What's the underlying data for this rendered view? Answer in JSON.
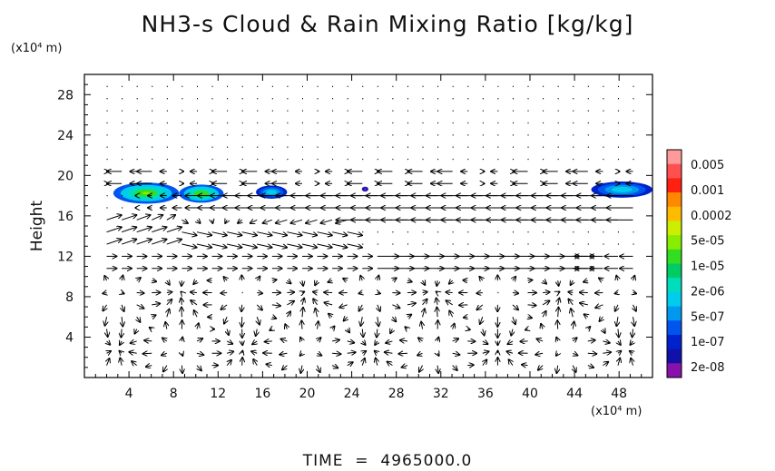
{
  "chart_data": {
    "type": "heatmap",
    "title": "NH3-s Cloud & Rain Mixing Ratio [kg/kg]",
    "ylabel": "Height",
    "ylabel_unit": "(x10⁴ m)",
    "xlabel_unit": "(x10⁴ m)",
    "xlim": [
      0,
      51
    ],
    "ylim": [
      0,
      30
    ],
    "x_ticks": [
      4,
      8,
      12,
      16,
      20,
      24,
      28,
      32,
      36,
      40,
      44,
      48
    ],
    "x_tick_labels": [
      "4",
      "8",
      "12",
      "16",
      "20",
      "24",
      "28",
      "32",
      "36",
      "40",
      "44",
      "48"
    ],
    "y_ticks": [
      4,
      8,
      12,
      16,
      20,
      24,
      28
    ],
    "y_tick_labels": [
      "4",
      "8",
      "12",
      "16",
      "20",
      "24",
      "28"
    ],
    "colorbar": {
      "labels": [
        "0.005",
        "0.001",
        "0.0002",
        "5e-05",
        "1e-05",
        "2e-06",
        "5e-07",
        "1e-07",
        "2e-08"
      ],
      "colors_top_to_bottom": [
        "#ff9a9a",
        "#ff5050",
        "#ff2010",
        "#ff8800",
        "#ffbb00",
        "#ccee00",
        "#88ee00",
        "#33dd22",
        "#00cc66",
        "#00ddbb",
        "#00ccee",
        "#0099ee",
        "#0055ee",
        "#0022cc",
        "#1111aa",
        "#8811aa"
      ]
    },
    "cloud_patches": [
      {
        "x": [
          2.6,
          8.5
        ],
        "z": [
          17.2,
          19.3
        ],
        "level": "5e-05"
      },
      {
        "x": [
          8.5,
          12.5
        ],
        "z": [
          17.3,
          19.1
        ],
        "level": "1e-05"
      },
      {
        "x": [
          15.4,
          18.2
        ],
        "z": [
          17.7,
          19.0
        ],
        "level": "1e-07"
      },
      {
        "x": [
          24.9,
          25.5
        ],
        "z": [
          18.4,
          18.9
        ],
        "level": "2e-08"
      },
      {
        "x": [
          45.5,
          51
        ],
        "z": [
          17.8,
          19.4
        ],
        "level": "1e-07"
      }
    ],
    "wind_field": {
      "jet_easterly_z": [
        16,
        17.5
      ],
      "jet_x_range": [
        18,
        51
      ],
      "upper_layer_z": [
        19,
        20
      ],
      "lower_jet_z": [
        11,
        12.5
      ],
      "lower_jet_x_range": [
        26,
        44
      ]
    },
    "time_label": "TIME",
    "time_value": "4965000.0"
  }
}
